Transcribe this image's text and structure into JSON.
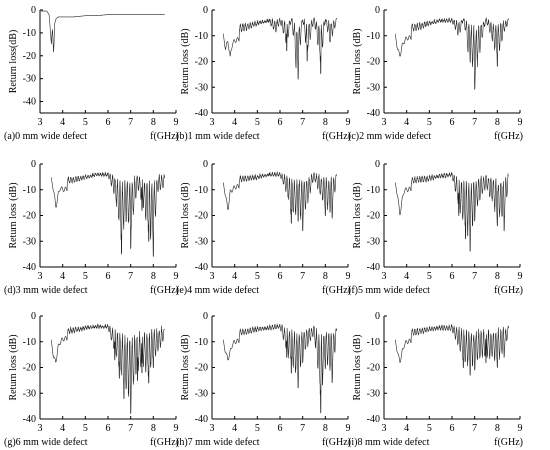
{
  "figure": {
    "panels": [
      {
        "caption": "(a)0 mm wide defect",
        "ylabel": "Return loss(dB)",
        "xlabel_unit": "f(GHz)"
      },
      {
        "caption": "(b)1 mm wide defect",
        "ylabel": "Return loss  (dB)",
        "xlabel_unit": "f(GHz)"
      },
      {
        "caption": "(c)2 mm wide defect",
        "ylabel": "Return loss  (dB)",
        "xlabel_unit": "f(GHz)"
      },
      {
        "caption": "(d)3 mm wide defect",
        "ylabel": "Return loss  (dB)",
        "xlabel_unit": "f(GHz)"
      },
      {
        "caption": "(e)4 mm wide defect",
        "ylabel": "Return loss  (dB)",
        "xlabel_unit": "f(GHz)"
      },
      {
        "caption": "(f)5 mm wide defect",
        "ylabel": "Return loss  (dB)",
        "xlabel_unit": "f(GHz)"
      },
      {
        "caption": "(g)6 mm wide defect",
        "ylabel": "Return loss  (dB)",
        "xlabel_unit": "f(GHz)"
      },
      {
        "caption": "(h)7 mm wide defect",
        "ylabel": "Return loss  (dB)",
        "xlabel_unit": "f(GHz)"
      },
      {
        "caption": "(i)8 mm wide defect",
        "ylabel": "Return loss  (dB)",
        "xlabel_unit": "f(GHz)"
      }
    ]
  },
  "chart_data": [
    {
      "type": "line",
      "title": "(a)0 mm wide defect",
      "xlabel": "f(GHz)",
      "ylabel": "Return loss(dB)",
      "xlim": [
        3,
        9
      ],
      "ylim": [
        -45,
        0
      ],
      "xticks": [
        3,
        4,
        5,
        6,
        7,
        8,
        9
      ],
      "yticks": [
        0,
        -10,
        -20,
        -30,
        -40
      ],
      "series": [
        {
          "x": [
            3.05,
            3.3,
            3.4,
            3.45,
            3.5,
            3.55,
            3.6,
            3.65,
            3.7,
            3.8,
            4.0,
            4.5,
            5.0,
            5.5,
            6.0,
            6.5,
            7.0,
            7.5,
            8.0,
            8.5
          ],
          "y": [
            -0.5,
            -0.5,
            -2,
            -8,
            -15,
            -8,
            -19,
            -6,
            -4,
            -3,
            -3,
            -3,
            -2.5,
            -2.5,
            -2,
            -2,
            -2,
            -2,
            -2,
            -2
          ]
        }
      ]
    },
    {
      "type": "line",
      "title": "(b)1 mm wide defect",
      "xlabel": "f(GHz)",
      "ylabel": "Return loss  (dB)",
      "xlim": [
        3,
        9
      ],
      "ylim": [
        -40,
        0
      ],
      "xticks": [
        3,
        4,
        5,
        6,
        7,
        8,
        9
      ],
      "yticks": [
        0,
        -10,
        -20,
        -30,
        -40
      ],
      "series": [
        {
          "x": [
            3.5,
            3.6,
            3.7,
            3.8,
            3.9,
            4.0,
            4.5,
            5.0,
            5.5,
            5.8,
            6.0,
            6.3,
            6.5,
            6.7,
            6.8,
            7.0,
            7.2,
            7.5,
            7.8,
            8.0,
            8.2,
            8.5
          ],
          "y": [
            -10,
            -15,
            -12,
            -18,
            -13,
            -12,
            -10,
            -7,
            -5,
            -10,
            -5,
            -16,
            -4,
            -22,
            -27,
            -4,
            -20,
            -4,
            -25,
            -4,
            -15,
            -5
          ]
        }
      ]
    },
    {
      "type": "line",
      "title": "(c)2 mm wide defect",
      "xlabel": "f(GHz)",
      "ylabel": "Return loss  (dB)",
      "xlim": [
        3,
        9
      ],
      "ylim": [
        -40,
        0
      ],
      "xticks": [
        3,
        4,
        5,
        6,
        7,
        8,
        9
      ],
      "yticks": [
        0,
        -10,
        -20,
        -30,
        -40
      ],
      "series": [
        {
          "x": [
            3.5,
            3.6,
            3.7,
            3.8,
            3.9,
            4.0,
            4.5,
            5.0,
            5.5,
            6.0,
            6.3,
            6.5,
            6.7,
            6.8,
            7.0,
            7.5,
            8.0,
            8.3,
            8.5
          ],
          "y": [
            -10,
            -15,
            -18,
            -14,
            -12,
            -11,
            -10,
            -7,
            -5,
            -5,
            -12,
            -4,
            -16,
            -20,
            -31,
            -4,
            -22,
            -10,
            -5
          ]
        }
      ]
    },
    {
      "type": "line",
      "title": "(d)3 mm wide defect",
      "xlabel": "f(GHz)",
      "ylabel": "Return loss  (dB)",
      "xlim": [
        3,
        9
      ],
      "ylim": [
        -40,
        0
      ],
      "xticks": [
        3,
        4,
        5,
        6,
        7,
        8,
        9
      ],
      "yticks": [
        0,
        -10,
        -20,
        -30,
        -40
      ],
      "series": [
        {
          "x": [
            3.5,
            3.6,
            3.7,
            3.8,
            3.9,
            4.0,
            4.5,
            5.0,
            5.5,
            6.0,
            6.3,
            6.6,
            6.8,
            7.0,
            7.3,
            7.5,
            7.8,
            8.0,
            8.2,
            8.5
          ],
          "y": [
            -6,
            -10,
            -17,
            -12,
            -9,
            -10,
            -9,
            -7,
            -5,
            -5,
            -14,
            -35,
            -22,
            -33,
            -10,
            -18,
            -30,
            -36,
            -12,
            -10
          ]
        }
      ]
    },
    {
      "type": "line",
      "title": "(e)4 mm wide defect",
      "xlabel": "f(GHz)",
      "ylabel": "Return loss  (dB)",
      "xlim": [
        3,
        9
      ],
      "ylim": [
        -40,
        0
      ],
      "xticks": [
        3,
        4,
        5,
        6,
        7,
        8,
        9
      ],
      "yticks": [
        0,
        -10,
        -20,
        -30,
        -40
      ],
      "series": [
        {
          "x": [
            3.5,
            3.6,
            3.7,
            3.8,
            3.9,
            4.0,
            4.5,
            5.0,
            5.5,
            6.0,
            6.3,
            6.5,
            6.8,
            7.0,
            7.5,
            8.0,
            8.3,
            8.5
          ],
          "y": [
            -8,
            -12,
            -18,
            -11,
            -10,
            -9,
            -8,
            -7,
            -5,
            -5,
            -13,
            -23,
            -22,
            -26,
            -6,
            -20,
            -21,
            -7
          ]
        }
      ]
    },
    {
      "type": "line",
      "title": "(f)5 mm wide defect",
      "xlabel": "f(GHz)",
      "ylabel": "Return loss  (dB)",
      "xlim": [
        3,
        9
      ],
      "ylim": [
        -40,
        0
      ],
      "xticks": [
        3,
        4,
        5,
        6,
        7,
        8,
        9
      ],
      "yticks": [
        0,
        -10,
        -20,
        -30,
        -40
      ],
      "series": [
        {
          "x": [
            3.5,
            3.6,
            3.7,
            3.8,
            3.9,
            4.0,
            4.5,
            5.0,
            5.5,
            6.0,
            6.3,
            6.6,
            6.8,
            7.0,
            7.5,
            8.0,
            8.3,
            8.5
          ],
          "y": [
            -8,
            -12,
            -20,
            -14,
            -10,
            -10,
            -9,
            -8,
            -6,
            -5,
            -20,
            -29,
            -34,
            -22,
            -10,
            -24,
            -26,
            -8
          ]
        }
      ]
    },
    {
      "type": "line",
      "title": "(g)6 mm wide defect",
      "xlabel": "f(GHz)",
      "ylabel": "Return loss  (dB)",
      "xlim": [
        3,
        9
      ],
      "ylim": [
        -40,
        0
      ],
      "xticks": [
        3,
        4,
        5,
        6,
        7,
        8,
        9
      ],
      "yticks": [
        0,
        -10,
        -20,
        -30,
        -40
      ],
      "series": [
        {
          "x": [
            3.5,
            3.6,
            3.7,
            3.8,
            3.9,
            4.0,
            4.5,
            5.0,
            5.5,
            6.0,
            6.3,
            6.5,
            6.7,
            7.0,
            7.3,
            7.5,
            7.8,
            8.0,
            8.3,
            8.5
          ],
          "y": [
            -10,
            -16,
            -18,
            -12,
            -10,
            -9,
            -8,
            -6,
            -5,
            -5,
            -17,
            -24,
            -32,
            -38,
            -25,
            -22,
            -26,
            -20,
            -14,
            -10
          ]
        }
      ]
    },
    {
      "type": "line",
      "title": "(h)7 mm wide defect",
      "xlabel": "f(GHz)",
      "ylabel": "Return loss  (dB)",
      "xlim": [
        3,
        9
      ],
      "ylim": [
        -40,
        0
      ],
      "xticks": [
        3,
        4,
        5,
        6,
        7,
        8,
        9
      ],
      "yticks": [
        0,
        -10,
        -20,
        -30,
        -40
      ],
      "series": [
        {
          "x": [
            3.5,
            3.6,
            3.7,
            3.8,
            3.9,
            4.0,
            4.5,
            5.0,
            5.5,
            6.0,
            6.3,
            6.5,
            6.8,
            7.0,
            7.5,
            7.8,
            8.0,
            8.3,
            8.5
          ],
          "y": [
            -10,
            -14,
            -17,
            -14,
            -11,
            -10,
            -9,
            -7,
            -6,
            -5,
            -16,
            -22,
            -28,
            -18,
            -8,
            -38,
            -20,
            -26,
            -10
          ]
        }
      ]
    },
    {
      "type": "line",
      "title": "(i)8 mm wide defect",
      "xlabel": "f(GHz)",
      "ylabel": "Return loss  (dB)",
      "xlim": [
        3,
        9
      ],
      "ylim": [
        -40,
        0
      ],
      "xticks": [
        3,
        4,
        5,
        6,
        7,
        8,
        9
      ],
      "yticks": [
        0,
        -10,
        -20,
        -30,
        -40
      ],
      "series": [
        {
          "x": [
            3.5,
            3.6,
            3.7,
            3.8,
            3.9,
            4.0,
            4.5,
            5.0,
            5.5,
            6.0,
            6.3,
            6.5,
            6.8,
            7.0,
            7.5,
            8.0,
            8.3,
            8.5
          ],
          "y": [
            -10,
            -14,
            -18,
            -14,
            -11,
            -10,
            -9,
            -7,
            -6,
            -6,
            -14,
            -20,
            -23,
            -21,
            -18,
            -20,
            -16,
            -8
          ]
        }
      ]
    }
  ]
}
